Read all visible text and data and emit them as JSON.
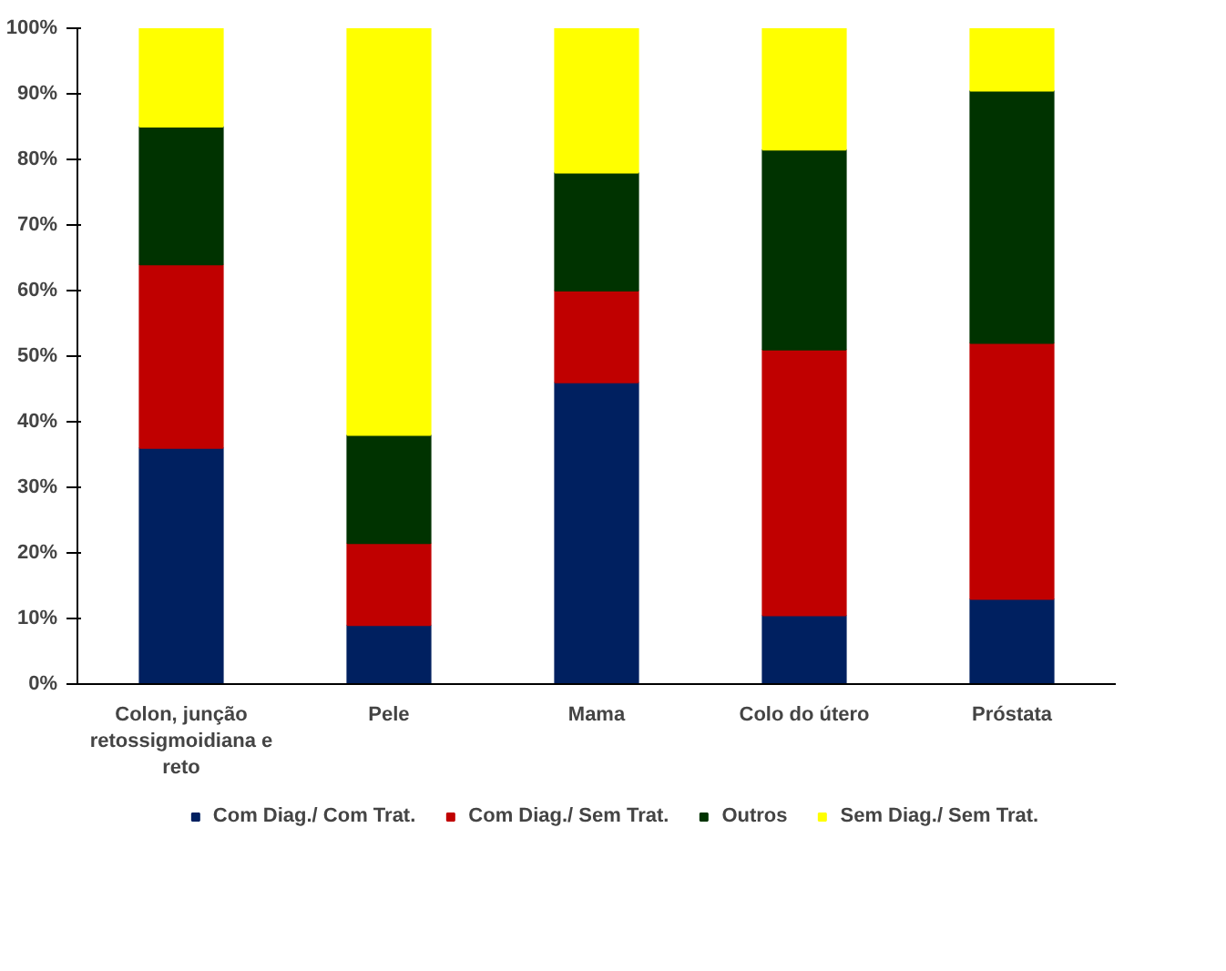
{
  "chart_data": {
    "type": "bar",
    "stacked": true,
    "categories": [
      "Colon, junção retossigmoidiana e reto",
      "Pele",
      "Mama",
      "Colo do útero",
      "Próstata"
    ],
    "series": [
      {
        "name": "Com Diag./ Com Trat.",
        "color": "#002060",
        "values": [
          36,
          9,
          46,
          10.5,
          13
        ]
      },
      {
        "name": "Com Diag./ Sem Trat.",
        "color": "#c00000",
        "values": [
          28,
          12.5,
          14,
          40.5,
          39
        ]
      },
      {
        "name": "Outros",
        "color": "#003300",
        "values": [
          21,
          16.5,
          18,
          30.5,
          38.5
        ]
      },
      {
        "name": "Sem Diag./ Sem Trat.",
        "color": "#ffff00",
        "values": [
          15,
          62,
          22,
          18.5,
          9.5
        ]
      }
    ],
    "ylim": [
      0,
      100
    ],
    "yticks": [
      {
        "value": 0,
        "label": "0%"
      },
      {
        "value": 10,
        "label": "10%"
      },
      {
        "value": 20,
        "label": "20%"
      },
      {
        "value": 30,
        "label": "30%"
      },
      {
        "value": 40,
        "label": "40%"
      },
      {
        "value": 50,
        "label": "50%"
      },
      {
        "value": 60,
        "label": "60%"
      },
      {
        "value": 70,
        "label": "70%"
      },
      {
        "value": 80,
        "label": "80%"
      },
      {
        "value": 90,
        "label": "90%"
      },
      {
        "value": 100,
        "label": "100%"
      }
    ],
    "grid": false,
    "legend": "bottom"
  }
}
